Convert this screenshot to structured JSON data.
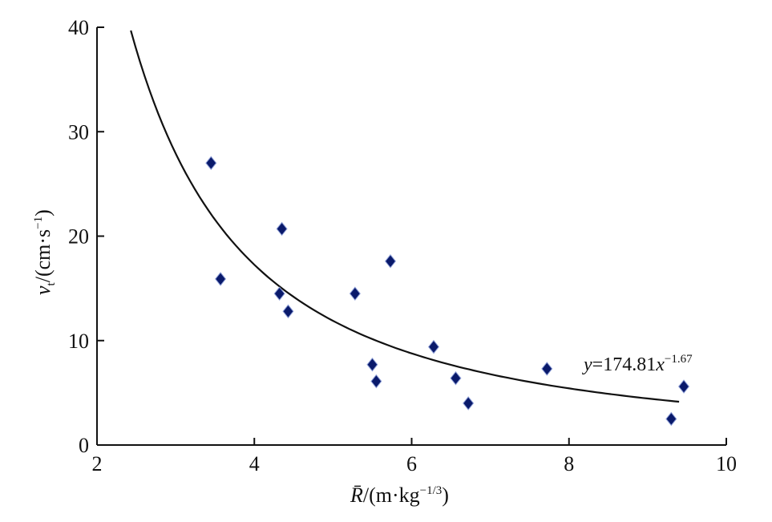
{
  "chart_data": {
    "type": "scatter",
    "xlabel": "R̄/(m·kg^-1/3)",
    "xlabel_parts": {
      "symbol": "R̄",
      "unit_prefix": "/(m·kg",
      "unit_exp": "−1/3",
      "unit_suffix": ")"
    },
    "ylabel": "vt/(cm·s^-1)",
    "ylabel_parts": {
      "symbol": "v",
      "subscript": "t",
      "unit_prefix": "/(cm·s",
      "unit_exp": "−1",
      "unit_suffix": ")"
    },
    "xlim": [
      2,
      10
    ],
    "ylim": [
      0,
      40
    ],
    "x_ticks": [
      "2",
      "4",
      "6",
      "8",
      "10"
    ],
    "y_ticks": [
      "0",
      "10",
      "20",
      "30",
      "40"
    ],
    "grid": false,
    "marker_color": "#0a1a6b",
    "points": [
      {
        "x": 3.45,
        "y": 27.0
      },
      {
        "x": 3.57,
        "y": 15.9
      },
      {
        "x": 4.32,
        "y": 14.5
      },
      {
        "x": 4.35,
        "y": 20.7
      },
      {
        "x": 4.43,
        "y": 12.8
      },
      {
        "x": 5.28,
        "y": 14.5
      },
      {
        "x": 5.5,
        "y": 7.7
      },
      {
        "x": 5.55,
        "y": 6.1
      },
      {
        "x": 5.73,
        "y": 17.6
      },
      {
        "x": 6.28,
        "y": 9.4
      },
      {
        "x": 6.56,
        "y": 6.4
      },
      {
        "x": 6.72,
        "y": 4.0
      },
      {
        "x": 7.72,
        "y": 7.3
      },
      {
        "x": 9.3,
        "y": 2.5
      },
      {
        "x": 9.46,
        "y": 5.6
      }
    ],
    "fit": {
      "coefficient": 174.81,
      "exponent": -1.67,
      "x_range": [
        2.43,
        9.4
      ],
      "label": {
        "prefix": "y",
        "middle": "=174.81",
        "var": "x",
        "exp": "−1.67"
      }
    }
  }
}
